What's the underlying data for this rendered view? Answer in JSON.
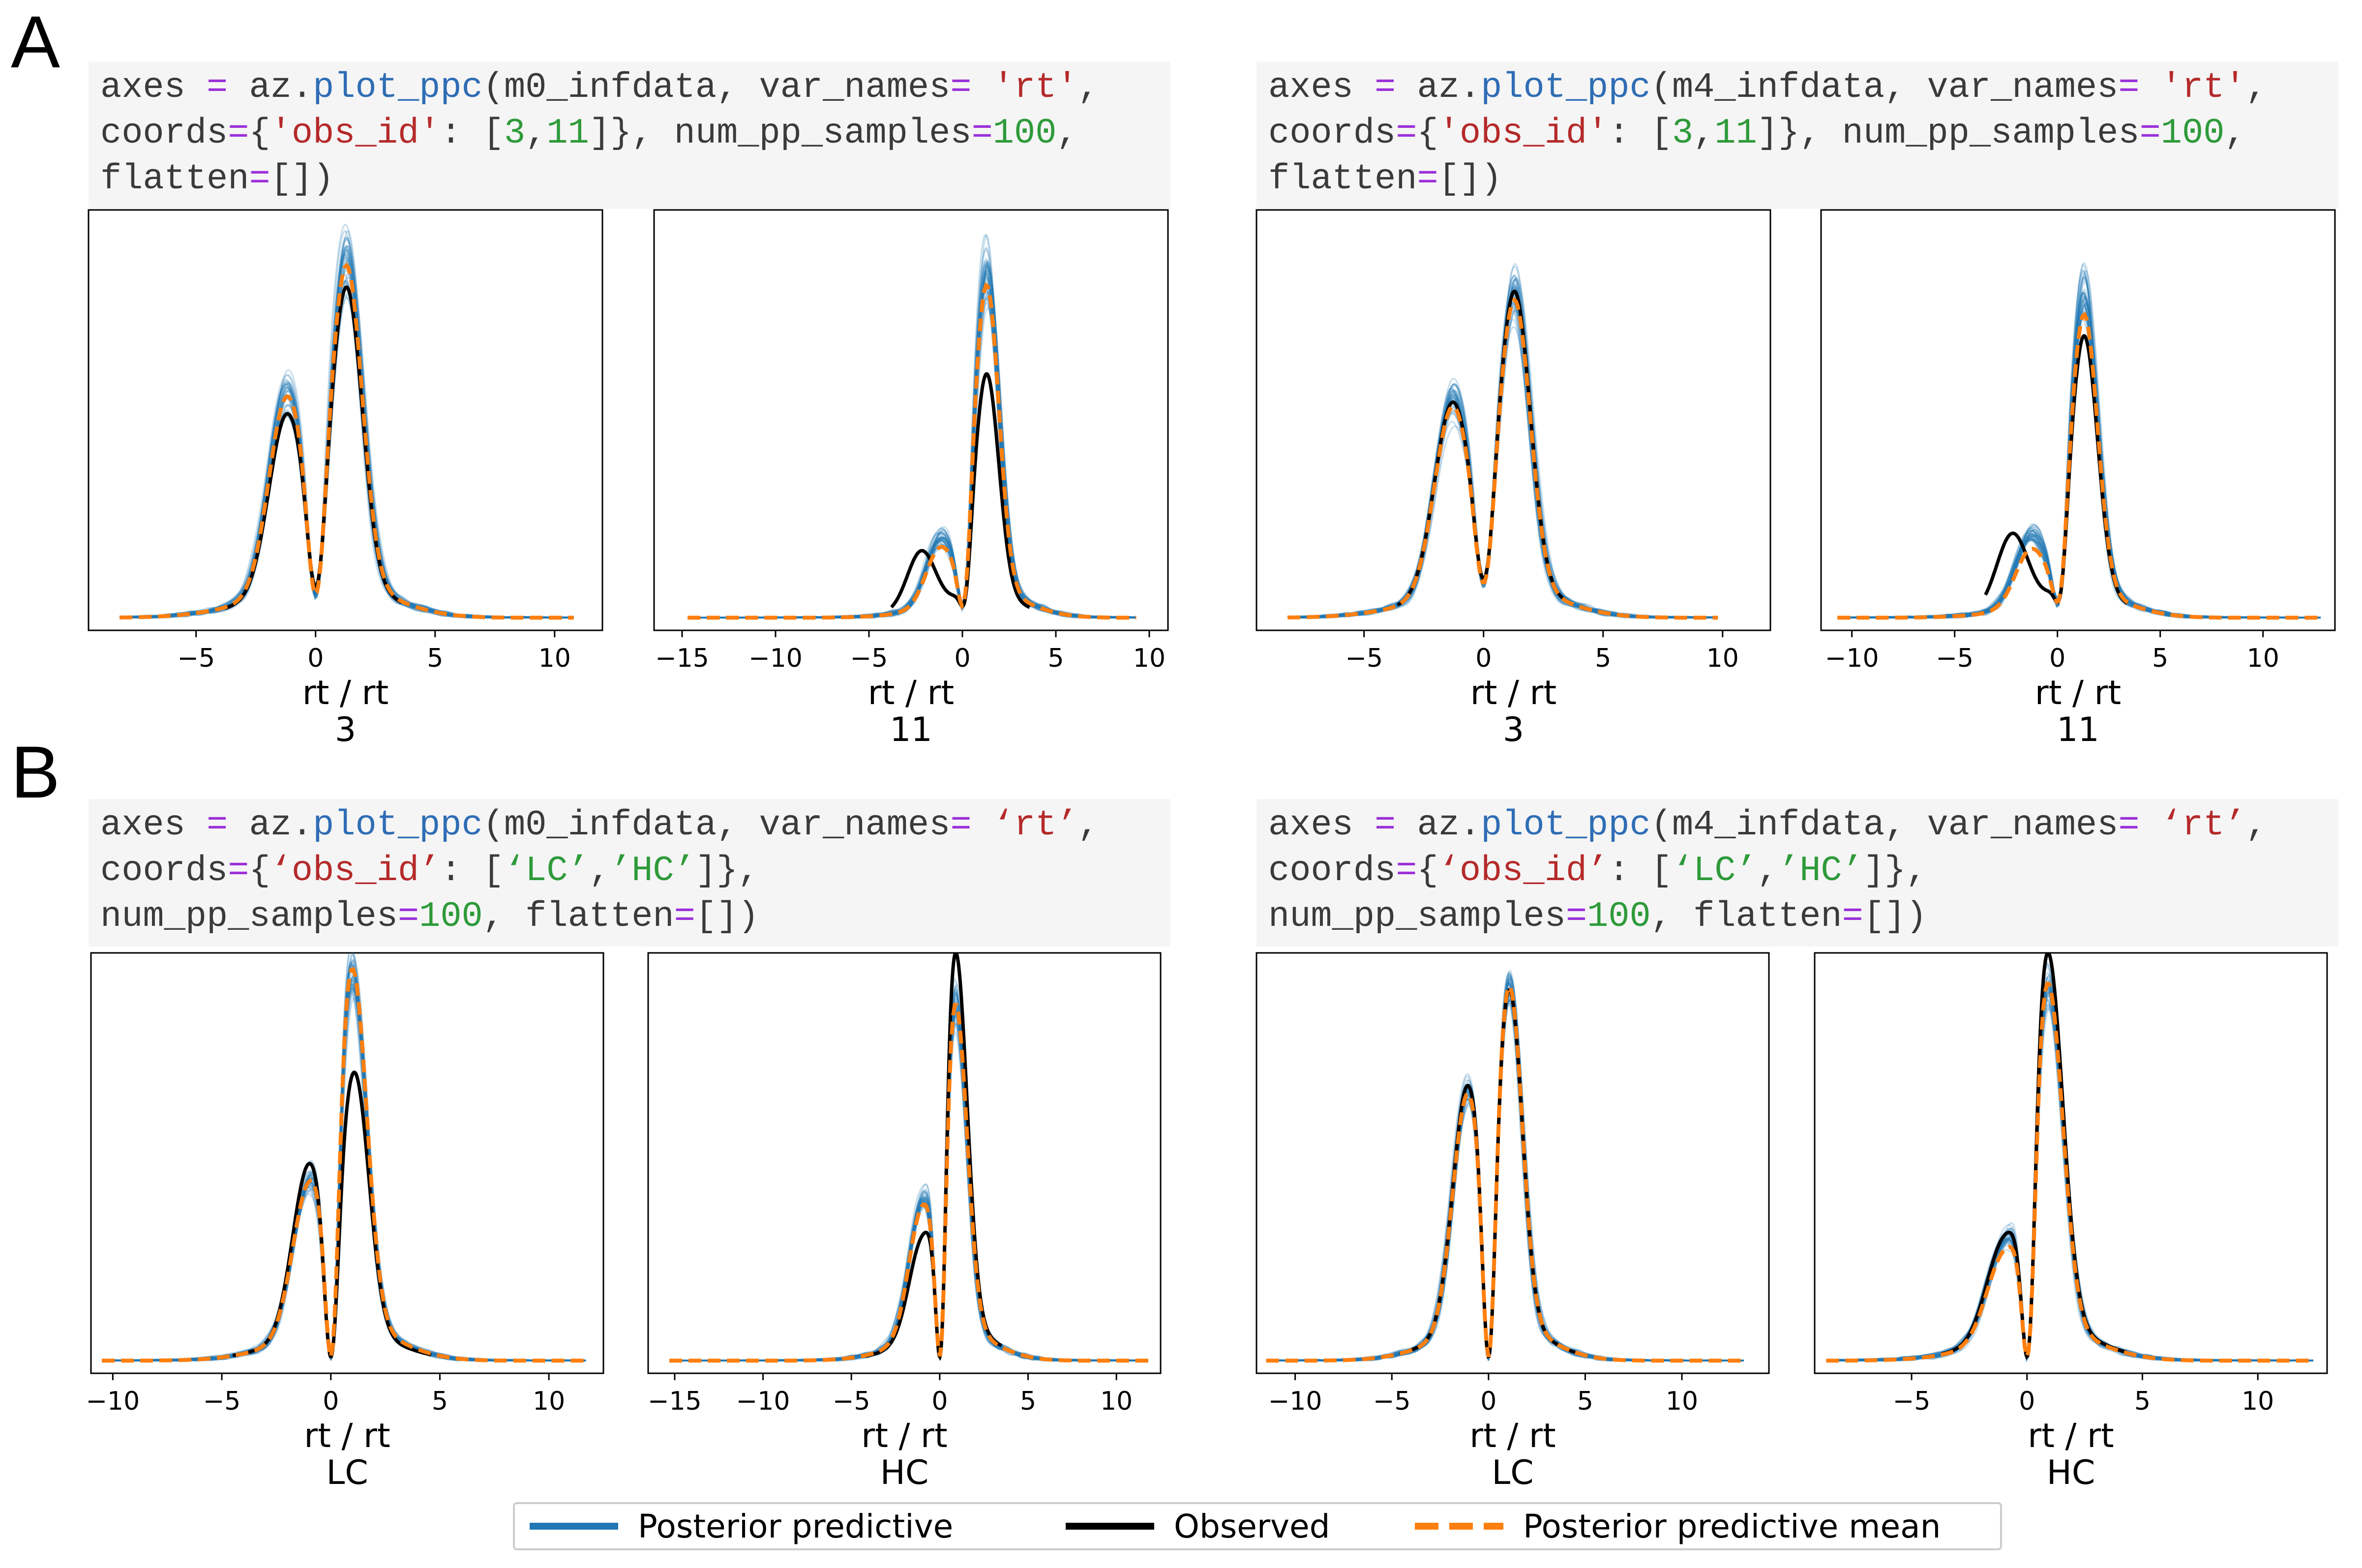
{
  "panels": {
    "A": "A",
    "B": "B"
  },
  "code": {
    "a_left": {
      "model": "m0_infdata",
      "obs": [
        "3",
        "11"
      ]
    },
    "a_right": {
      "model": "m4_infdata",
      "obs": [
        "3",
        "11"
      ]
    },
    "b_left": {
      "model": "m0_infdata",
      "obs": [
        "'LC'",
        "'HC'"
      ]
    },
    "b_right": {
      "model": "m4_infdata",
      "obs": [
        "'LC'",
        "'HC'"
      ]
    },
    "tokens": {
      "axes": "axes",
      "eq": "=",
      "az": "az.",
      "plot_ppc": "plot_ppc",
      "open": "(",
      "var_names": ", var_names",
      "rt_a": "'rt'",
      "rt_b": "‘rt’",
      "comma": ",",
      "coords": "coords",
      "brace_open": "{",
      "obs_id_a": "'obs_id'",
      "obs_id_b": "‘obs_id’",
      "colon_bracket": ": [",
      "close_brace": "]},",
      "num_pp_samples": "num_pp_samples",
      "hundred": "100",
      "flatten": "flatten",
      "empty_list": "[])",
      "lc": "‘LC’",
      "hc": "’HC’",
      "sep_num": " num_pp_samples",
      "comma_flatten": ", flatten"
    }
  },
  "legend": {
    "items": [
      {
        "label": "Posterior predictive",
        "color": "#1f77b4",
        "style": "solid"
      },
      {
        "label": "Observed",
        "color": "#000000",
        "style": "solid"
      },
      {
        "label": "Posterior predictive mean",
        "color": "#ff7f0e",
        "style": "dashed"
      }
    ]
  },
  "colors": {
    "posterior_predictive": "#1f77b4",
    "observed": "#000000",
    "mean": "#ff7f0e"
  },
  "chart_data": [
    {
      "type": "line",
      "panel": "A",
      "model": "m0_infdata",
      "xlabel": "rt / rt",
      "subtitle": "3",
      "xticks": [
        -5,
        0,
        5,
        10
      ],
      "xlim": [
        -9.5,
        12
      ],
      "ylim": [
        0,
        1
      ],
      "observed": {
        "x_range": [
          -3.8,
          3.6
        ],
        "peaks": [
          {
            "x": -1.2,
            "y": 0.46
          },
          {
            "x": 1.3,
            "y": 0.77
          }
        ],
        "trough": {
          "x": 0,
          "y": 0.08
        }
      },
      "mean": {
        "x_range": [
          -8.2,
          10.8
        ],
        "peaks": [
          {
            "x": -1.2,
            "y": 0.5
          },
          {
            "x": 1.3,
            "y": 0.82
          }
        ],
        "trough": {
          "x": 0,
          "y": 0.06
        }
      },
      "posterior_predictive": {
        "samples": 100,
        "x_range": [
          -8.2,
          10.8
        ],
        "peaks": [
          {
            "x": -1.2,
            "y": 0.52
          },
          {
            "x": 1.3,
            "y": 0.86
          }
        ],
        "spread": 0.08
      }
    },
    {
      "type": "line",
      "panel": "A",
      "model": "m0_infdata",
      "xlabel": "rt / rt",
      "subtitle": "11",
      "xticks": [
        -15,
        -10,
        -5,
        0,
        5,
        10
      ],
      "xlim": [
        -16.5,
        11
      ],
      "ylim": [
        0,
        1
      ],
      "observed": {
        "x_range": [
          -3.8,
          3.6
        ],
        "peaks": [
          {
            "x": -2.2,
            "y": 0.15
          },
          {
            "x": 1.3,
            "y": 0.58
          }
        ],
        "trough": {
          "x": 0,
          "y": 0.03
        }
      },
      "mean": {
        "x_range": [
          -14.7,
          9.3
        ],
        "peaks": [
          {
            "x": -1.2,
            "y": 0.14
          },
          {
            "x": 1.3,
            "y": 0.79
          }
        ],
        "trough": {
          "x": 0,
          "y": 0.03
        }
      },
      "posterior_predictive": {
        "samples": 100,
        "x_range": [
          -14.7,
          9.3
        ],
        "peaks": [
          {
            "x": -1.2,
            "y": 0.17
          },
          {
            "x": 1.3,
            "y": 0.86
          }
        ],
        "spread": 0.08
      }
    },
    {
      "type": "line",
      "panel": "A",
      "model": "m4_infdata",
      "xlabel": "rt / rt",
      "subtitle": "3",
      "xticks": [
        -5,
        0,
        5,
        10
      ],
      "xlim": [
        -9.5,
        12
      ],
      "ylim": [
        0,
        1
      ],
      "observed": {
        "x_range": [
          -3.6,
          3.6
        ],
        "peaks": [
          {
            "x": -1.3,
            "y": 0.49
          },
          {
            "x": 1.3,
            "y": 0.76
          }
        ],
        "trough": {
          "x": 0,
          "y": 0.1
        }
      },
      "mean": {
        "x_range": [
          -8.2,
          9.8
        ],
        "peaks": [
          {
            "x": -1.3,
            "y": 0.48
          },
          {
            "x": 1.3,
            "y": 0.74
          }
        ],
        "trough": {
          "x": 0,
          "y": 0.09
        }
      },
      "posterior_predictive": {
        "samples": 100,
        "x_range": [
          -8.2,
          9.8
        ],
        "peaks": [
          {
            "x": -1.3,
            "y": 0.52
          },
          {
            "x": 1.3,
            "y": 0.78
          }
        ],
        "spread": 0.08
      }
    },
    {
      "type": "line",
      "panel": "A",
      "model": "m4_infdata",
      "xlabel": "rt / rt",
      "subtitle": "11",
      "xticks": [
        -10,
        -5,
        0,
        5,
        10
      ],
      "xlim": [
        -11.5,
        13.5
      ],
      "ylim": [
        0,
        1
      ],
      "observed": {
        "x_range": [
          -3.5,
          3.4
        ],
        "peaks": [
          {
            "x": -2.2,
            "y": 0.19
          },
          {
            "x": 1.3,
            "y": 0.67
          }
        ],
        "trough": {
          "x": 0,
          "y": 0.04
        }
      },
      "mean": {
        "x_range": [
          -10.7,
          12.8
        ],
        "peaks": [
          {
            "x": -1.3,
            "y": 0.14
          },
          {
            "x": 1.3,
            "y": 0.72
          }
        ],
        "trough": {
          "x": 0,
          "y": 0.04
        }
      },
      "posterior_predictive": {
        "samples": 100,
        "x_range": [
          -10.7,
          12.8
        ],
        "peaks": [
          {
            "x": -1.3,
            "y": 0.18
          },
          {
            "x": 1.3,
            "y": 0.8
          }
        ],
        "spread": 0.08
      }
    },
    {
      "type": "line",
      "panel": "B",
      "model": "m0_infdata",
      "xlabel": "rt / rt",
      "subtitle": "LC",
      "xticks": [
        -10,
        -5,
        0,
        5,
        10
      ],
      "xlim": [
        -11,
        12.5
      ],
      "ylim": [
        0,
        1
      ],
      "observed": {
        "x_range": [
          -4.5,
          4.6
        ],
        "peaks": [
          {
            "x": -1.0,
            "y": 0.44
          },
          {
            "x": 1.1,
            "y": 0.66
          }
        ],
        "trough": {
          "x": 0,
          "y": 0.01
        }
      },
      "mean": {
        "x_range": [
          -10.5,
          11.7
        ],
        "peaks": [
          {
            "x": -1.0,
            "y": 0.38
          },
          {
            "x": 1.0,
            "y": 0.91
          }
        ],
        "trough": {
          "x": 0,
          "y": 0.01
        }
      },
      "posterior_predictive": {
        "samples": 100,
        "x_range": [
          -10.5,
          11.7
        ],
        "peaks": [
          {
            "x": -1.0,
            "y": 0.4
          },
          {
            "x": 1.0,
            "y": 0.94
          }
        ],
        "spread": 0.03
      }
    },
    {
      "type": "line",
      "panel": "B",
      "model": "m0_infdata",
      "xlabel": "rt / rt",
      "subtitle": "HC",
      "xticks": [
        -15,
        -10,
        -5,
        0,
        5,
        10
      ],
      "xlim": [
        -16.5,
        12.5
      ],
      "ylim": [
        0,
        1
      ],
      "observed": {
        "x_range": [
          -4.2,
          3.5
        ],
        "peaks": [
          {
            "x": -1.0,
            "y": 0.24
          },
          {
            "x": 0.9,
            "y": 0.96
          }
        ],
        "trough": {
          "x": 0,
          "y": 0.01
        }
      },
      "mean": {
        "x_range": [
          -15.3,
          11.8
        ],
        "peaks": [
          {
            "x": -1.0,
            "y": 0.32
          },
          {
            "x": 0.9,
            "y": 0.83
          }
        ],
        "trough": {
          "x": 0,
          "y": 0.01
        }
      },
      "posterior_predictive": {
        "samples": 100,
        "x_range": [
          -15.3,
          11.8
        ],
        "peaks": [
          {
            "x": -1.0,
            "y": 0.35
          },
          {
            "x": 0.9,
            "y": 0.86
          }
        ],
        "spread": 0.03
      }
    },
    {
      "type": "line",
      "panel": "B",
      "model": "m4_infdata",
      "xlabel": "rt / rt",
      "subtitle": "LC",
      "xticks": [
        -10,
        -5,
        0,
        5,
        10
      ],
      "xlim": [
        -12,
        14.5
      ],
      "ylim": [
        0,
        1
      ],
      "observed": {
        "x_range": [
          -4.6,
          4.5
        ],
        "peaks": [
          {
            "x": -1.1,
            "y": 0.62
          },
          {
            "x": 1.1,
            "y": 0.85
          }
        ],
        "trough": {
          "x": 0,
          "y": 0.01
        }
      },
      "mean": {
        "x_range": [
          -11.5,
          13.2
        ],
        "peaks": [
          {
            "x": -1.1,
            "y": 0.6
          },
          {
            "x": 1.1,
            "y": 0.86
          }
        ],
        "trough": {
          "x": 0,
          "y": 0.01
        }
      },
      "posterior_predictive": {
        "samples": 100,
        "x_range": [
          -11.5,
          13.2
        ],
        "peaks": [
          {
            "x": -1.1,
            "y": 0.63
          },
          {
            "x": 1.1,
            "y": 0.89
          }
        ],
        "spread": 0.03
      }
    },
    {
      "type": "line",
      "panel": "B",
      "model": "m4_infdata",
      "xlabel": "rt / rt",
      "subtitle": "HC",
      "xticks": [
        -5,
        0,
        5,
        10
      ],
      "xlim": [
        -9.2,
        13
      ],
      "ylim": [
        0,
        1
      ],
      "observed": {
        "x_range": [
          -3.7,
          4.3
        ],
        "peaks": [
          {
            "x": -1.0,
            "y": 0.24
          },
          {
            "x": 0.9,
            "y": 0.96
          }
        ],
        "trough": {
          "x": 0,
          "y": 0.01
        }
      },
      "mean": {
        "x_range": [
          -8.7,
          12.4
        ],
        "peaks": [
          {
            "x": -1.0,
            "y": 0.21
          },
          {
            "x": 0.9,
            "y": 0.89
          }
        ],
        "trough": {
          "x": 0,
          "y": 0.01
        }
      },
      "posterior_predictive": {
        "samples": 100,
        "x_range": [
          -8.7,
          12.4
        ],
        "peaks": [
          {
            "x": -1.0,
            "y": 0.24
          },
          {
            "x": 0.9,
            "y": 0.92
          }
        ],
        "spread": 0.03
      }
    }
  ]
}
